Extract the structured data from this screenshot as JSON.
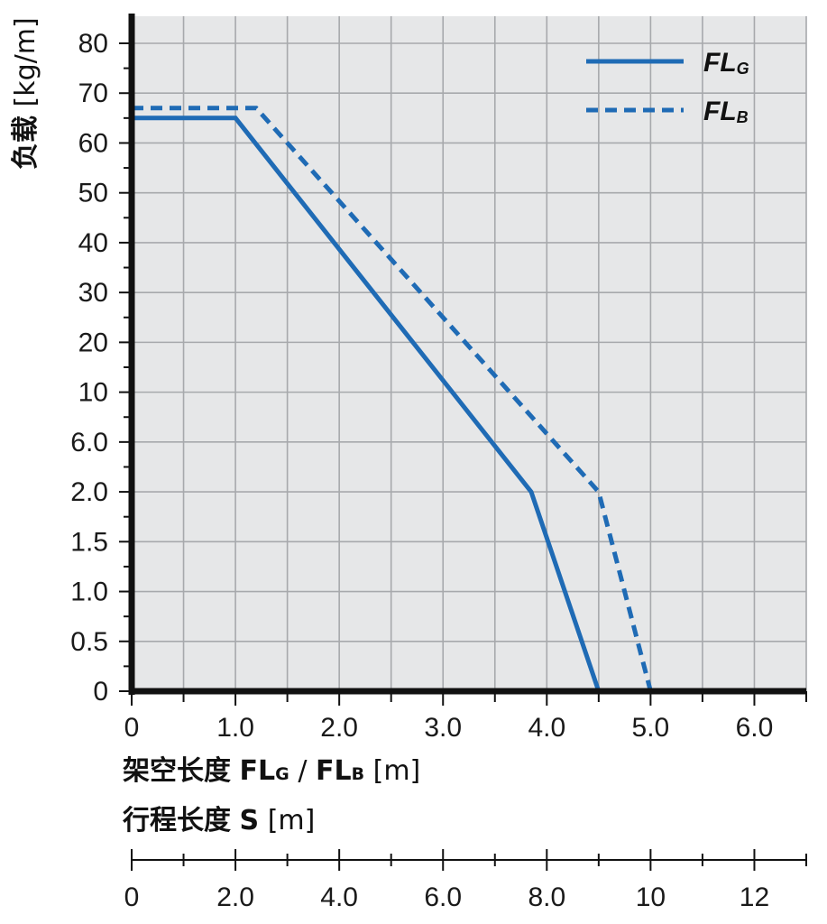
{
  "chart_data": {
    "type": "line",
    "ylabel": {
      "main": "负载",
      "unit": "[kg/m]"
    },
    "xlabel": {
      "main": "架空长度",
      "bold_a": "FL",
      "sub_a": "G",
      "sep": "/",
      "bold_b": "FL",
      "sub_b": "B",
      "unit": "[m]"
    },
    "x2label": {
      "main": "行程长度",
      "bold": "S",
      "unit": "[m]"
    },
    "y_ticks": [
      "0",
      "0.5",
      "1.0",
      "1.5",
      "2.0",
      "6.0",
      "10",
      "20",
      "30",
      "40",
      "50",
      "60",
      "70",
      "80"
    ],
    "x_ticks": [
      "0",
      "1.0",
      "2.0",
      "3.0",
      "4.0",
      "5.0",
      "6.0"
    ],
    "x2_ticks": [
      "0",
      "2.0",
      "4.0",
      "6.0",
      "8.0",
      "10",
      "12"
    ],
    "xlim": [
      0,
      6.5
    ],
    "legend_position": "top-right",
    "grid": true,
    "series": [
      {
        "name": "FL",
        "subscript": "G",
        "style": "solid",
        "color": "#1f6bb5",
        "points": [
          [
            0,
            65
          ],
          [
            1.0,
            65
          ],
          [
            3.85,
            2.0
          ],
          [
            4.5,
            0
          ]
        ]
      },
      {
        "name": "FL",
        "subscript": "B",
        "style": "dashed",
        "color": "#1f6bb5",
        "points": [
          [
            0,
            67
          ],
          [
            1.2,
            67
          ],
          [
            4.5,
            2.0
          ],
          [
            5.0,
            0
          ]
        ]
      }
    ]
  }
}
